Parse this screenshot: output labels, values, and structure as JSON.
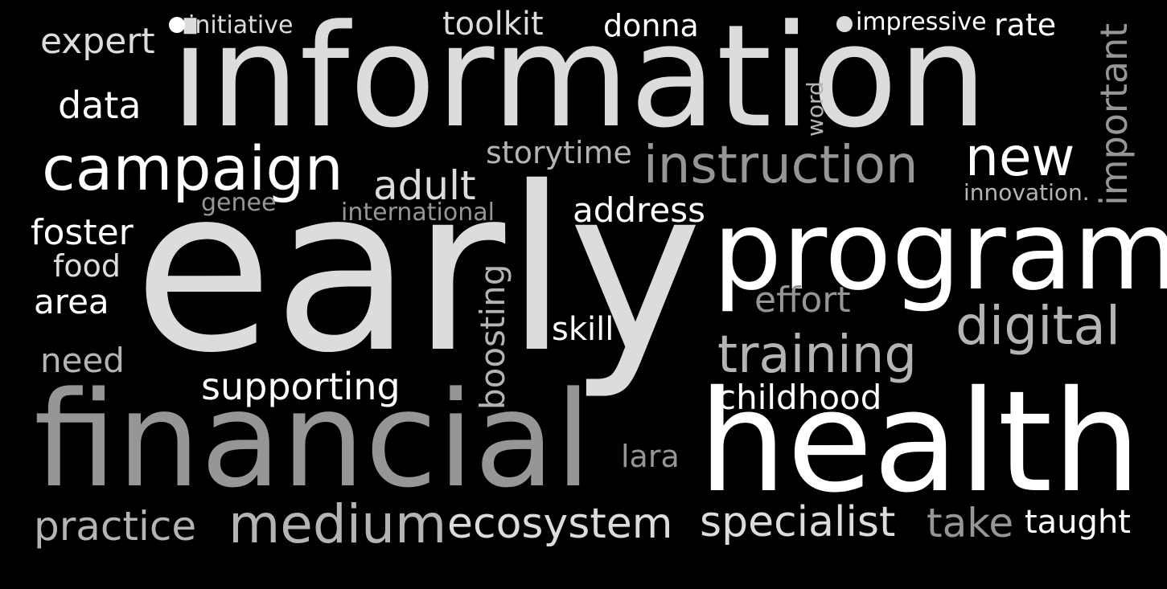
{
  "colors": {
    "background": "#000000",
    "white": "#ffffff",
    "light_gray": "#dcdcdc",
    "mid_gray": "#b4b4b4",
    "dark_gray": "#969696"
  },
  "words": {
    "information": "information",
    "early": "early",
    "financial": "financial",
    "health": "health",
    "program": "program",
    "campaign": "campaign",
    "instruction": "instruction",
    "training": "training",
    "digital": "digital",
    "new": "new",
    "medium": "medium",
    "ecosystem": "ecosystem",
    "practice": "practice",
    "specialist": "specialist",
    "take": "take",
    "taught": "taught",
    "adult": "adult",
    "storytime": "storytime",
    "address": "address",
    "international": "international",
    "genee": "genee",
    "foster": "foster",
    "food": "food",
    "area": "area",
    "need": "need",
    "supporting": "supporting",
    "boosting": "boosting",
    "skill": "skill",
    "effort": "effort",
    "childhood": "childhood",
    "lara": "lara",
    "data": "data",
    "expert": "expert",
    "initiative": "initiative",
    "toolkit": "toolkit",
    "donna": "donna",
    "impressive": "impressive",
    "rate": "rate",
    "word": "word",
    "important": "important",
    "innovation": "innovation."
  }
}
